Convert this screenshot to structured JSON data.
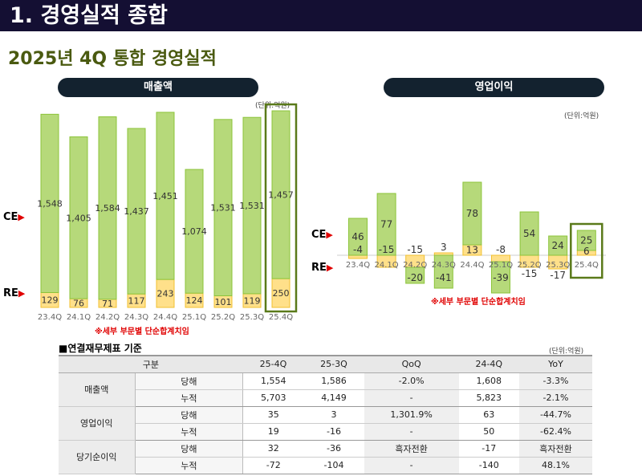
{
  "header": {
    "title": "1. 경영실적 종합",
    "subtitle": "2025년 4Q 통합 경영실적"
  },
  "colors": {
    "ce": "#b6d97a",
    "ce_border": "#8cc43a",
    "re": "#ffe08a",
    "re_border": "#f0c030",
    "highlight": "#5a7a1a"
  },
  "legend": {
    "ce": "CE",
    "re": "RE"
  },
  "note": "※세부 부문별 단순합계치임",
  "chart_data": [
    {
      "type": "bar",
      "title": "매출액",
      "unit": "(단위:억원)",
      "categories": [
        "23.4Q",
        "24.1Q",
        "24.2Q",
        "24.3Q",
        "24.4Q",
        "25.1Q",
        "25.2Q",
        "25.3Q",
        "25.4Q"
      ],
      "series": [
        {
          "name": "RE",
          "values": [
            129,
            76,
            71,
            117,
            243,
            124,
            101,
            119,
            250
          ]
        },
        {
          "name": "CE",
          "values": [
            1548,
            1405,
            1584,
            1437,
            1451,
            1074,
            1531,
            1531,
            1457
          ]
        }
      ],
      "stacked": true,
      "highlight": "25.4Q"
    },
    {
      "type": "bar",
      "title": "영업이익",
      "unit": "(단위:억원)",
      "categories": [
        "23.4Q",
        "24.1Q",
        "24.2Q",
        "24.3Q",
        "24.4Q",
        "25.1Q",
        "25.2Q",
        "25.3Q",
        "25.4Q"
      ],
      "series": [
        {
          "name": "RE",
          "values": [
            -4,
            -15,
            -15,
            3,
            13,
            -8,
            -15,
            -17,
            6
          ]
        },
        {
          "name": "CE",
          "values": [
            46,
            77,
            -20,
            -41,
            78,
            -39,
            54,
            24,
            25
          ]
        }
      ],
      "stacked": true,
      "highlight": "25.4Q"
    }
  ],
  "table": {
    "title": "■연결재무제표 기준",
    "unit": "(단위:억원)",
    "headers": [
      "구분",
      "25-4Q",
      "25-3Q",
      "QoQ",
      "24-4Q",
      "YoY"
    ],
    "groups": [
      {
        "name": "매출액",
        "rows": [
          [
            "당해",
            "1,554",
            "1,586",
            "-2.0%",
            "1,608",
            "-3.3%"
          ],
          [
            "누적",
            "5,703",
            "4,149",
            "-",
            "5,823",
            "-2.1%"
          ]
        ]
      },
      {
        "name": "영업이익",
        "rows": [
          [
            "당해",
            "35",
            "3",
            "1,301.9%",
            "63",
            "-44.7%"
          ],
          [
            "누적",
            "19",
            "-16",
            "-",
            "50",
            "-62.4%"
          ]
        ]
      },
      {
        "name": "당기순이익",
        "rows": [
          [
            "당해",
            "32",
            "-36",
            "흑자전환",
            "-17",
            "흑자전환"
          ],
          [
            "누적",
            "-72",
            "-104",
            "-",
            "-140",
            "48.1%"
          ]
        ]
      }
    ]
  }
}
